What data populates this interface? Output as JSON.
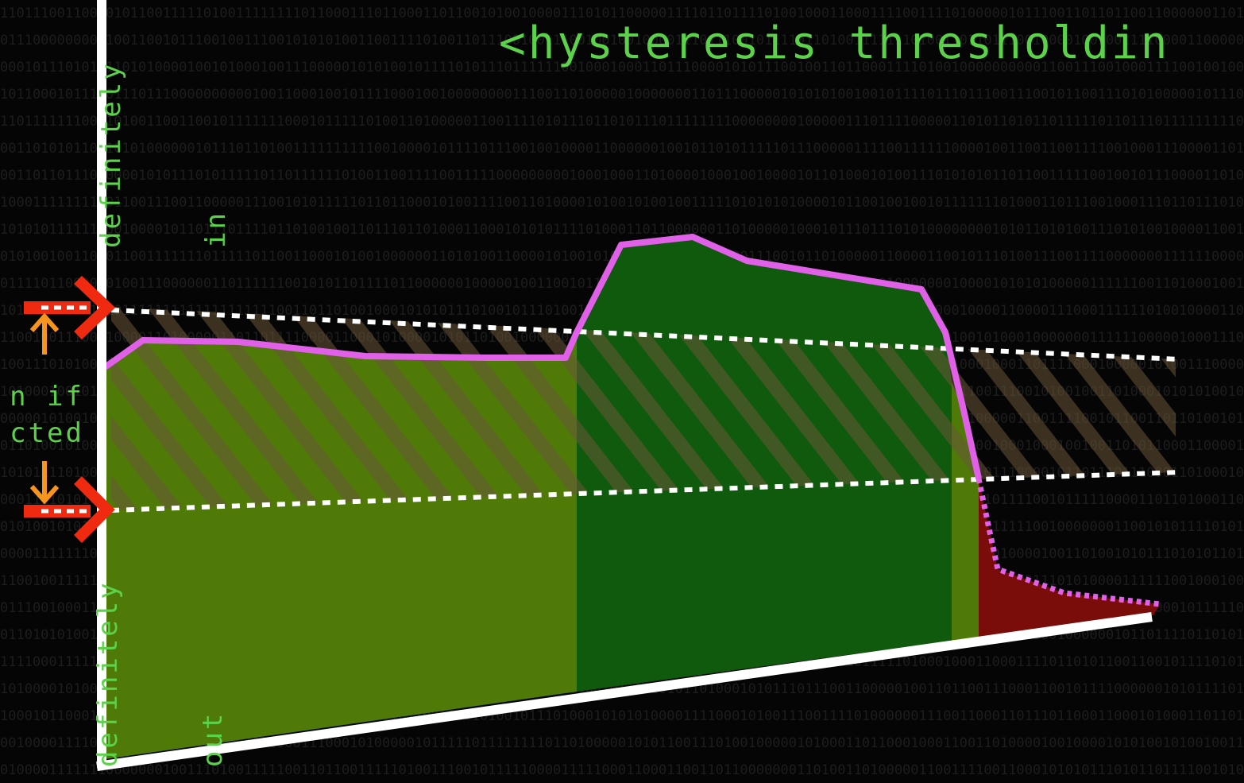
{
  "title": "<hysteresis thresholdin",
  "labels": {
    "definitely_in": [
      "definitely",
      "in"
    ],
    "in_if_connected": [
      "n if",
      "cted"
    ],
    "definitely_out": [
      "definitely",
      "out"
    ]
  },
  "colors": {
    "accent_text": "#5bd24a",
    "curve": "#e060e8",
    "region_yellow_green": "#4f7a08",
    "region_green": "#0f5a0c",
    "region_red": "#7a0c0a",
    "hatch": "#6a5638",
    "arrow_red": "#f02a10",
    "arrow_orange": "#f7941d",
    "axis": "#ffffff"
  },
  "icons": [
    "red-threshold-arrow-icon",
    "orange-up-arrow-icon",
    "orange-down-arrow-icon"
  ]
}
